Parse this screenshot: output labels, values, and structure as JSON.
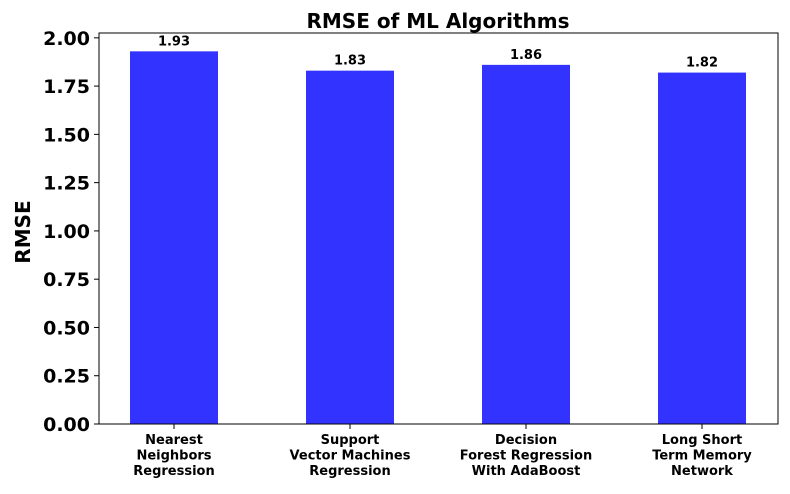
{
  "chart_data": {
    "type": "bar",
    "title": "RMSE of ML Algorithms",
    "xlabel": "",
    "ylabel": "RMSE",
    "categories": [
      "Nearest\nNeighbors\nRegression",
      "Support\nVector Machines\nRegression",
      "Decision\nForest Regression\nWith AdaBoost",
      "Long Short\nTerm Memory\nNetwork"
    ],
    "values": [
      1.93,
      1.83,
      1.86,
      1.82
    ],
    "data_labels": [
      "1.93",
      "1.83",
      "1.86",
      "1.82"
    ],
    "ylim": [
      0,
      2.025
    ],
    "yticks": [
      0,
      0.25,
      0.5,
      0.75,
      1.0,
      1.25,
      1.5,
      1.75,
      2.0
    ],
    "ytick_labels": [
      "0.00",
      "0.25",
      "0.50",
      "0.75",
      "1.00",
      "1.25",
      "1.50",
      "1.75",
      "2.00"
    ],
    "bar_color": "#3333ff",
    "grid": false,
    "legend": "none"
  }
}
